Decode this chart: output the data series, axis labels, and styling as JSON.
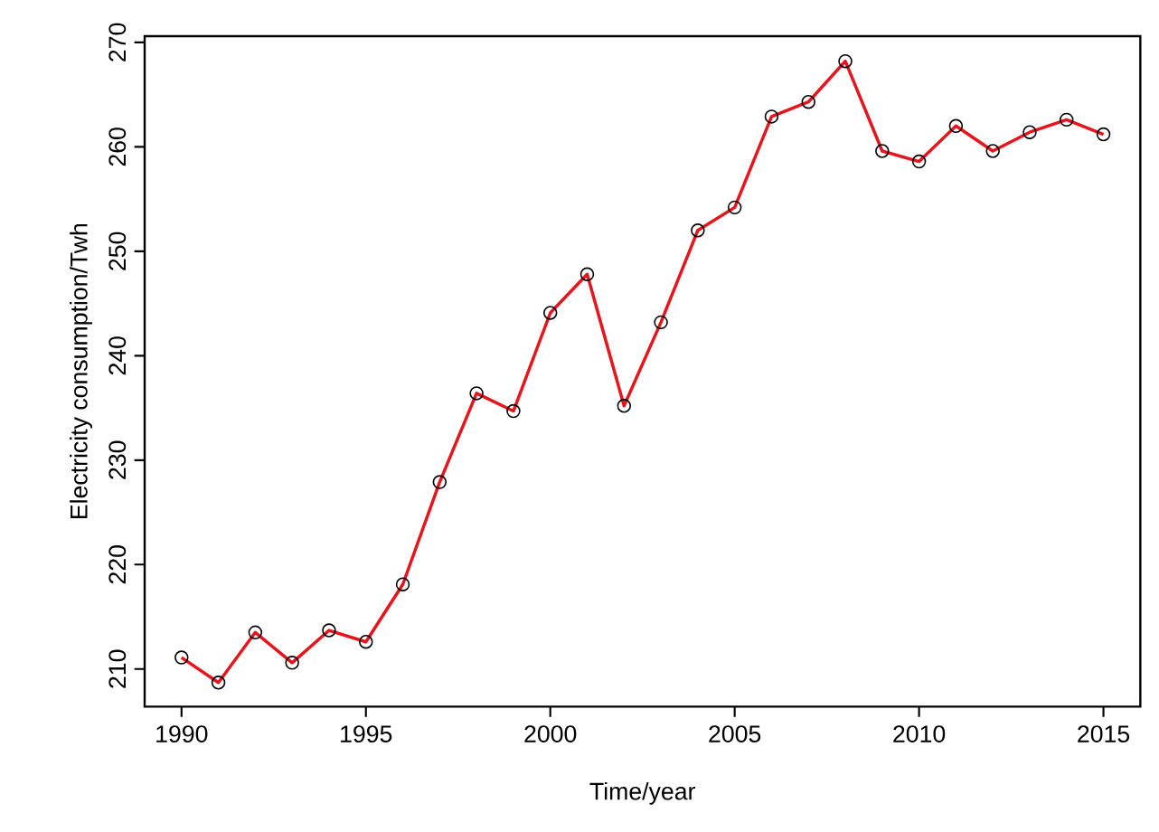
{
  "chart_data": {
    "type": "line",
    "xlabel": "Time/year",
    "ylabel": "Electricity consumption/Twh",
    "x": [
      1990,
      1991,
      1992,
      1993,
      1994,
      1995,
      1996,
      1997,
      1998,
      1999,
      2000,
      2001,
      2002,
      2003,
      2004,
      2005,
      2006,
      2007,
      2008,
      2009,
      2010,
      2011,
      2012,
      2013,
      2014,
      2015
    ],
    "series": [
      {
        "color": "#e8141c",
        "values": [
          211.1,
          208.7,
          213.5,
          210.6,
          213.7,
          212.6,
          218.1,
          227.9,
          236.4,
          234.7,
          244.1,
          247.8,
          235.2,
          243.2,
          252.0,
          254.2,
          262.9,
          264.3,
          268.2,
          259.6,
          258.6,
          262.0,
          259.6,
          261.4,
          262.6,
          261.2
        ]
      }
    ],
    "xlim": [
      1989,
      2016
    ],
    "ylim": [
      206.4,
      270.6
    ],
    "xticks": [
      1990,
      1995,
      2000,
      2005,
      2010,
      2015
    ],
    "yticks": [
      210,
      220,
      230,
      240,
      250,
      260,
      270
    ],
    "marker": "circle",
    "grid": false
  }
}
